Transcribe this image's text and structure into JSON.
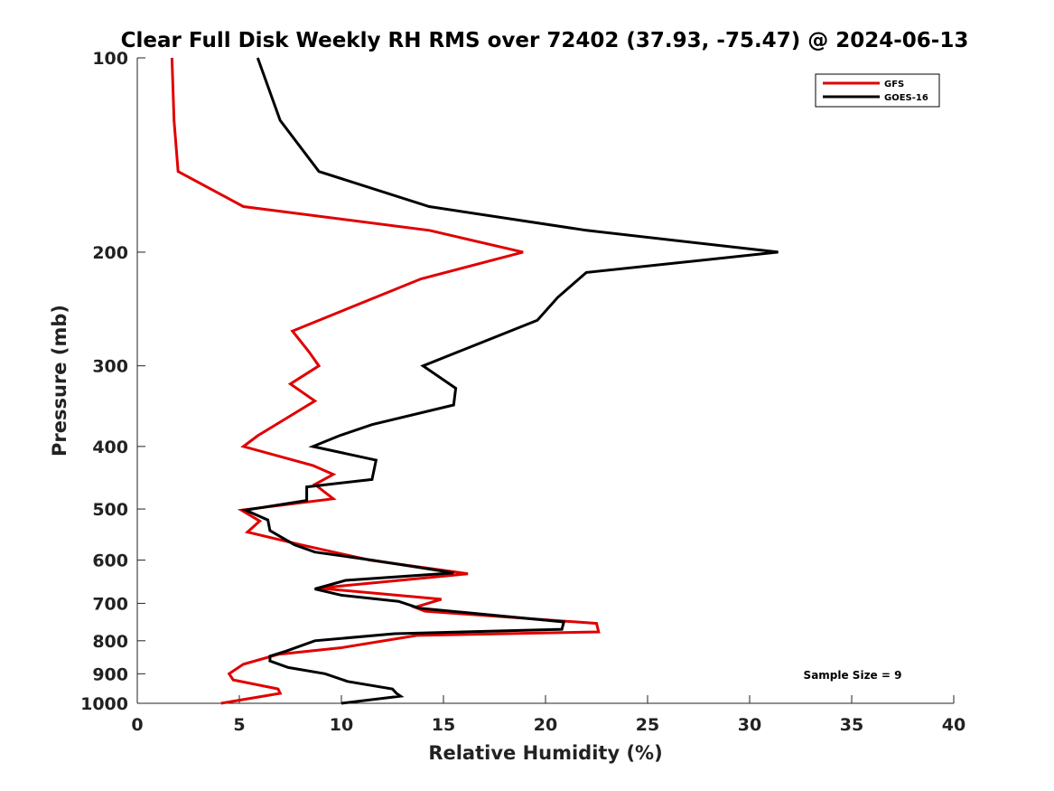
{
  "chart_data": {
    "type": "line",
    "title": "Clear Full Disk Weekly RH RMS over 72402 (37.93, -75.47) @ 2024-06-13",
    "xlabel": "Relative Humidity (%)",
    "ylabel": "Pressure (mb)",
    "xlim": [
      0,
      40
    ],
    "ylim": [
      100,
      1000
    ],
    "yscale": "log",
    "yreversed": true,
    "xticks": [
      0,
      5,
      10,
      15,
      20,
      25,
      30,
      35,
      40
    ],
    "yticks": [
      100,
      200,
      300,
      400,
      500,
      600,
      700,
      800,
      900,
      1000
    ],
    "legend_position": "top-right",
    "annotation": "Sample Size = 9",
    "series": [
      {
        "name": "GFS",
        "color": "#e00000",
        "points": [
          [
            1.7,
            100
          ],
          [
            1.8,
            125
          ],
          [
            2.0,
            150
          ],
          [
            5.2,
            170
          ],
          [
            14.3,
            185
          ],
          [
            18.9,
            200
          ],
          [
            13.9,
            220
          ],
          [
            7.6,
            265
          ],
          [
            8.4,
            285
          ],
          [
            8.9,
            300
          ],
          [
            7.5,
            320
          ],
          [
            8.7,
            340
          ],
          [
            7.1,
            365
          ],
          [
            5.9,
            385
          ],
          [
            5.2,
            400
          ],
          [
            8.6,
            428
          ],
          [
            9.6,
            442
          ],
          [
            8.7,
            458
          ],
          [
            9.6,
            482
          ],
          [
            5.1,
            502
          ],
          [
            6.0,
            522
          ],
          [
            5.4,
            543
          ],
          [
            8.0,
            568
          ],
          [
            11.4,
            600
          ],
          [
            16.2,
            630
          ],
          [
            8.9,
            663
          ],
          [
            14.9,
            690
          ],
          [
            13.6,
            710
          ],
          [
            14.1,
            720
          ],
          [
            22.5,
            752
          ],
          [
            22.6,
            775
          ],
          [
            13.7,
            785
          ],
          [
            10.0,
            820
          ],
          [
            6.9,
            840
          ],
          [
            5.2,
            870
          ],
          [
            4.5,
            900
          ],
          [
            4.7,
            920
          ],
          [
            6.9,
            950
          ],
          [
            7.0,
            965
          ],
          [
            4.1,
            1000
          ]
        ]
      },
      {
        "name": "GOES-16",
        "color": "#000000",
        "points": [
          [
            5.9,
            100
          ],
          [
            7.0,
            125
          ],
          [
            8.9,
            150
          ],
          [
            14.3,
            170
          ],
          [
            22.0,
            185
          ],
          [
            31.4,
            200
          ],
          [
            22.0,
            215
          ],
          [
            20.6,
            235
          ],
          [
            19.6,
            255
          ],
          [
            14.0,
            300
          ],
          [
            15.6,
            325
          ],
          [
            15.5,
            345
          ],
          [
            11.5,
            370
          ],
          [
            9.9,
            385
          ],
          [
            8.6,
            400
          ],
          [
            11.7,
            420
          ],
          [
            11.5,
            450
          ],
          [
            8.3,
            462
          ],
          [
            8.3,
            485
          ],
          [
            5.3,
            502
          ],
          [
            6.4,
            520
          ],
          [
            6.5,
            540
          ],
          [
            7.7,
            568
          ],
          [
            8.7,
            583
          ],
          [
            11.5,
            600
          ],
          [
            15.5,
            628
          ],
          [
            10.2,
            645
          ],
          [
            8.7,
            665
          ],
          [
            10.0,
            680
          ],
          [
            12.8,
            695
          ],
          [
            13.8,
            712
          ],
          [
            20.9,
            748
          ],
          [
            20.8,
            768
          ],
          [
            12.6,
            780
          ],
          [
            8.7,
            800
          ],
          [
            7.3,
            830
          ],
          [
            6.5,
            845
          ],
          [
            6.5,
            860
          ],
          [
            7.4,
            880
          ],
          [
            9.2,
            900
          ],
          [
            10.3,
            925
          ],
          [
            12.5,
            950
          ],
          [
            12.7,
            965
          ],
          [
            12.9,
            975
          ],
          [
            10.0,
            1000
          ]
        ]
      }
    ]
  }
}
